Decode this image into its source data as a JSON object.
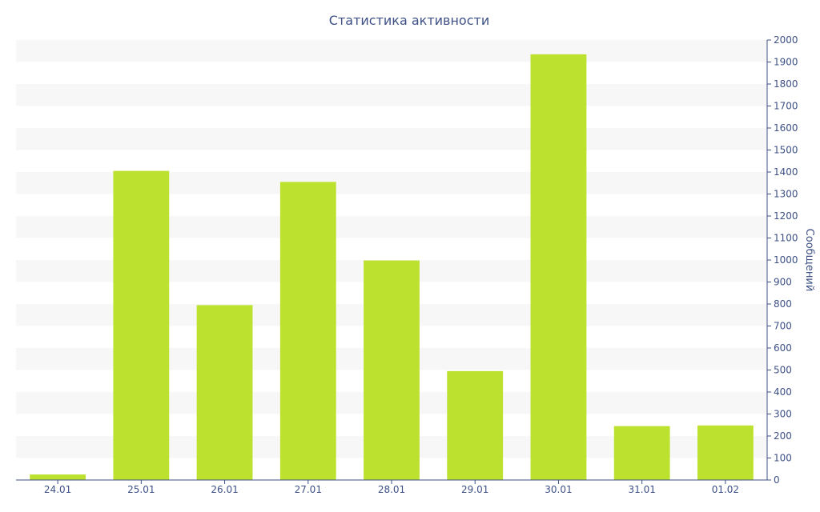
{
  "chart_data": {
    "type": "bar",
    "title": "Статистика активности",
    "xlabel": "",
    "ylabel": "Сообщений",
    "categories": [
      "24.01",
      "25.01",
      "26.01",
      "27.01",
      "28.01",
      "29.01",
      "30.01",
      "31.01",
      "01.02"
    ],
    "values": [
      25,
      1405,
      795,
      1355,
      998,
      495,
      1935,
      245,
      248
    ],
    "ylim": [
      0,
      2000
    ],
    "y_ticks": [
      0,
      100,
      200,
      300,
      400,
      500,
      600,
      700,
      800,
      900,
      1000,
      1100,
      1200,
      1300,
      1400,
      1500,
      1600,
      1700,
      1800,
      1900,
      2000
    ],
    "y_axis_side": "right",
    "grid": "alternating horizontal bands",
    "colors": {
      "bar": "#bce22f",
      "axis": "#3e5186",
      "text": "#3e5186",
      "band": "#f7f7f7"
    }
  }
}
